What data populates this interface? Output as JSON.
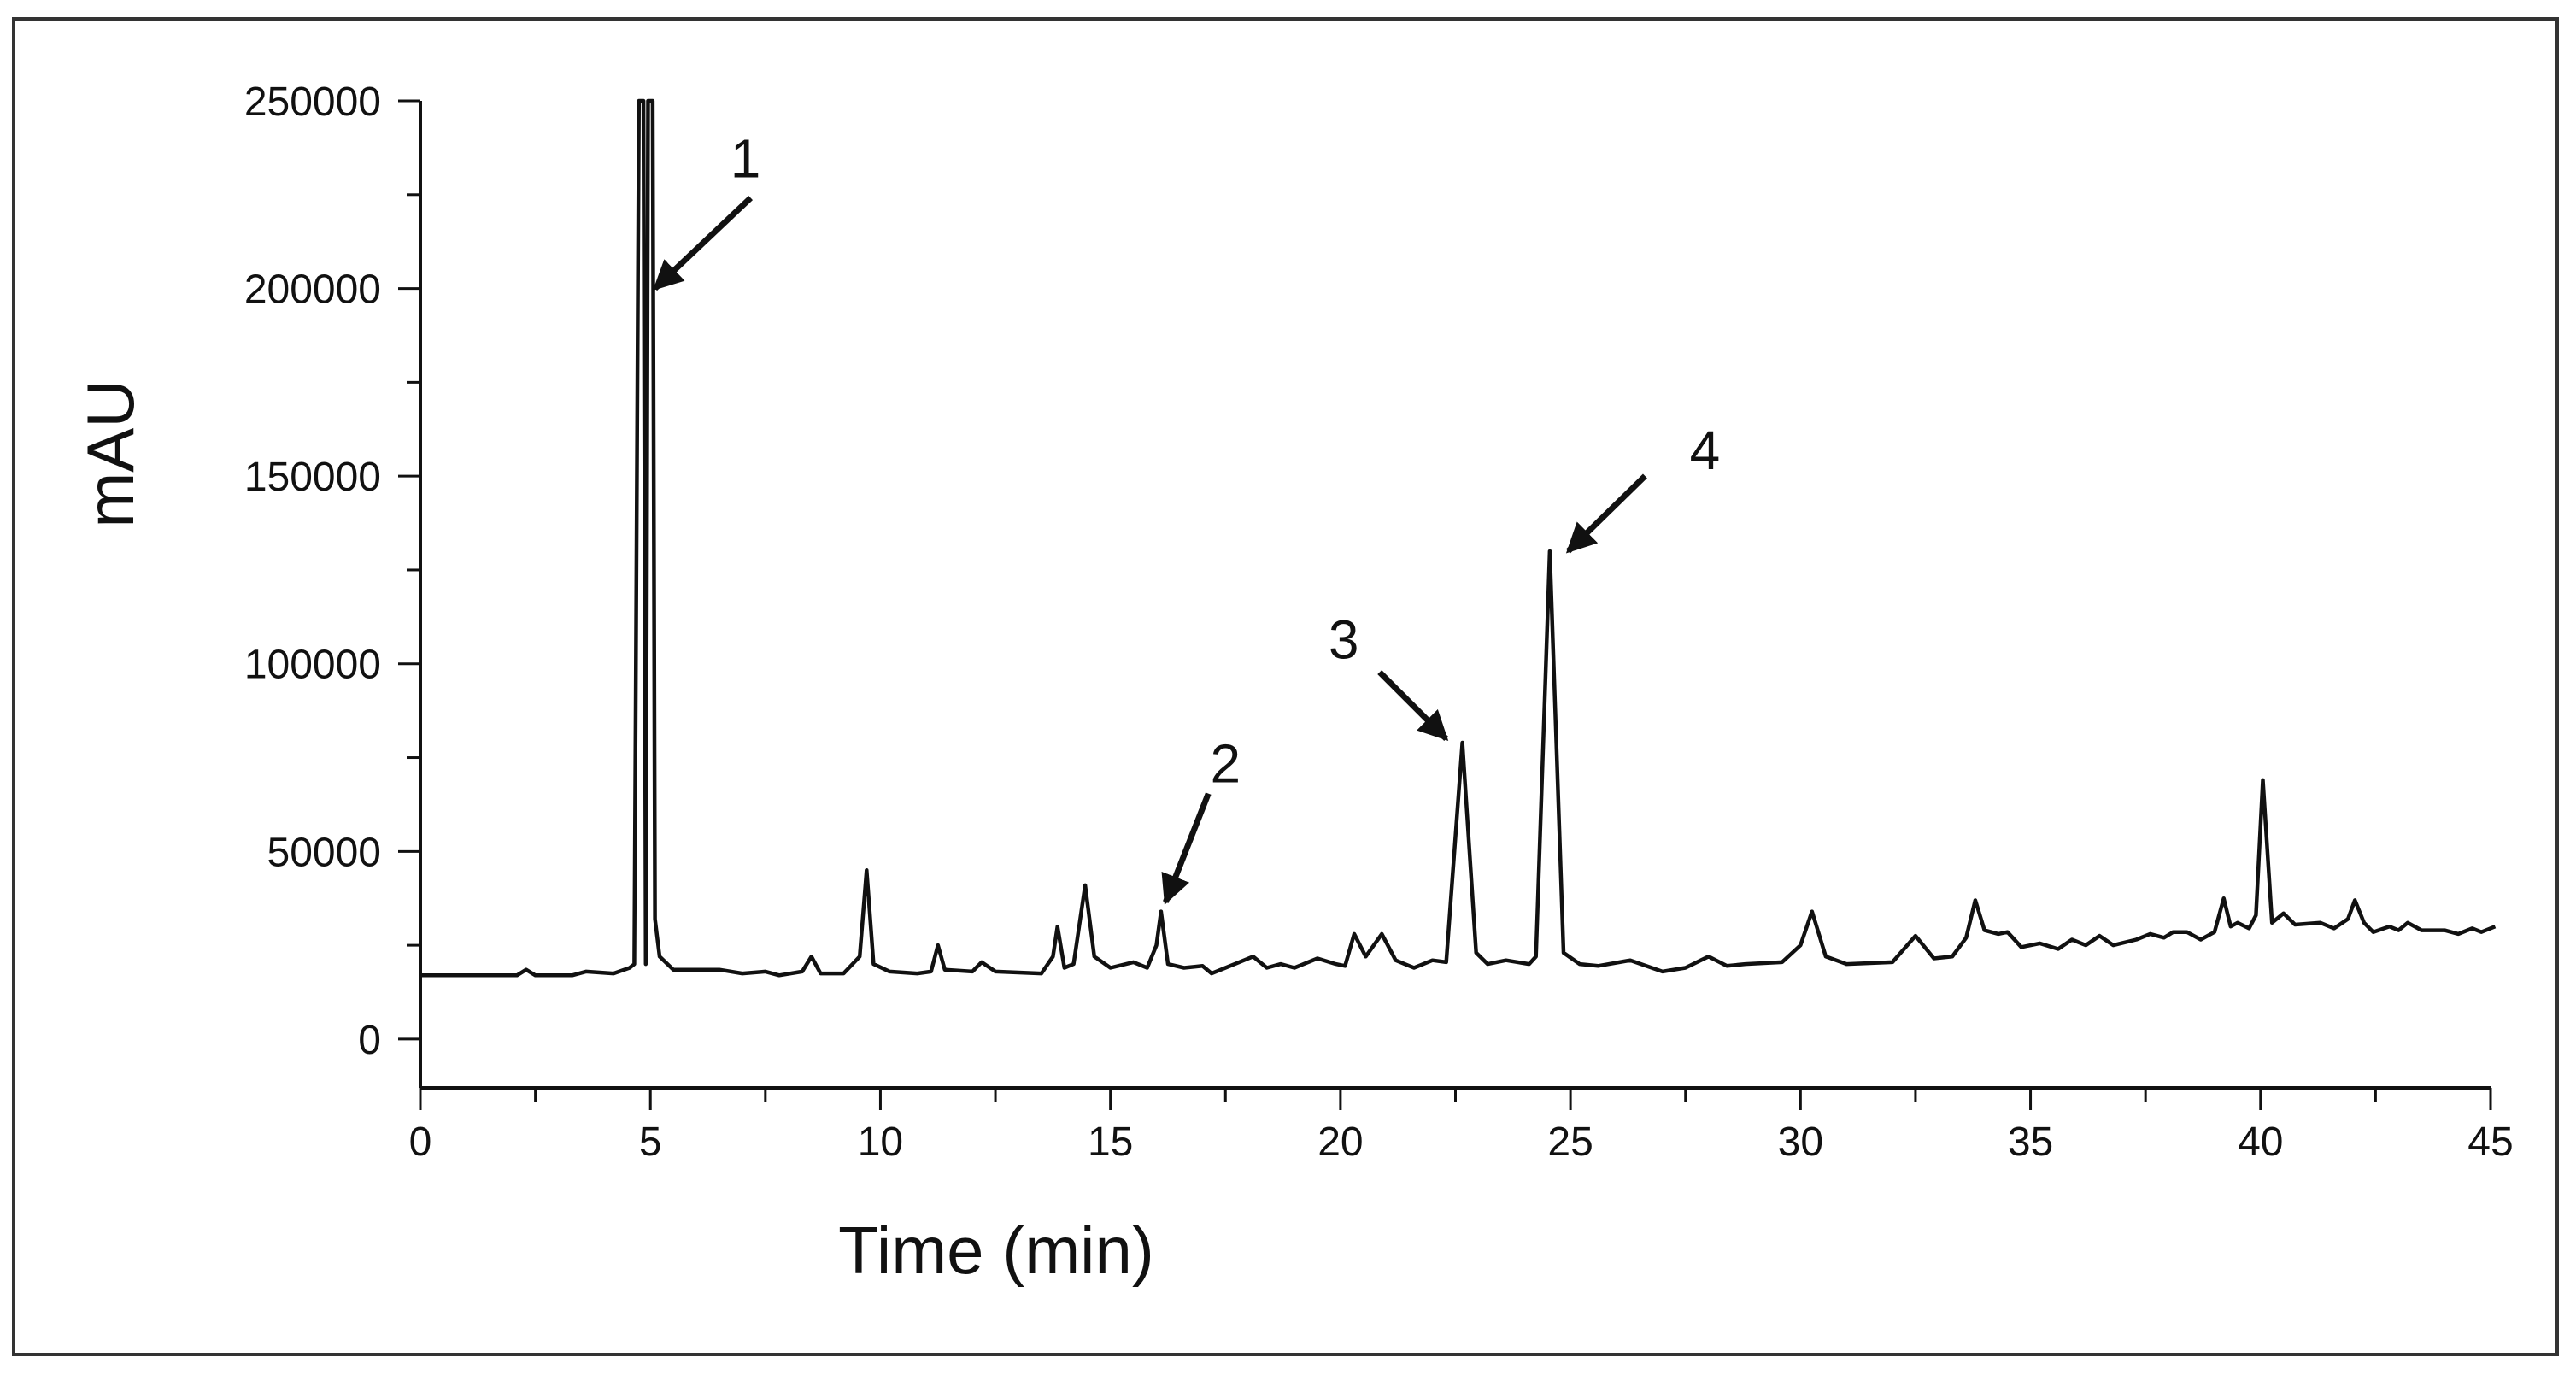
{
  "chart_data": {
    "type": "line",
    "xlabel": "Time (min)",
    "ylabel": "mAU",
    "xlim": [
      0,
      45
    ],
    "ylim": [
      -13000,
      250000
    ],
    "xticks": [
      0,
      5,
      10,
      15,
      20,
      25,
      30,
      35,
      40,
      45
    ],
    "yticks": [
      0,
      50000,
      100000,
      150000,
      200000,
      250000
    ],
    "grid": false,
    "legend": "none",
    "line_color": "#111111",
    "series": [
      {
        "values": [
          [
            0,
            17000
          ],
          [
            2.1,
            17000
          ],
          [
            2.3,
            18500
          ],
          [
            2.5,
            17000
          ],
          [
            3.3,
            17000
          ],
          [
            3.6,
            18000
          ],
          [
            4.2,
            17500
          ],
          [
            4.55,
            19000
          ],
          [
            4.65,
            20000
          ],
          [
            4.75,
            250000
          ],
          [
            4.85,
            250000
          ],
          [
            4.9,
            20000
          ],
          [
            4.95,
            250000
          ],
          [
            5.05,
            250000
          ],
          [
            5.1,
            32000
          ],
          [
            5.2,
            22000
          ],
          [
            5.5,
            18500
          ],
          [
            6.5,
            18500
          ],
          [
            7.0,
            17500
          ],
          [
            7.5,
            18000
          ],
          [
            7.8,
            17000
          ],
          [
            8.3,
            18000
          ],
          [
            8.5,
            22000
          ],
          [
            8.7,
            17500
          ],
          [
            9.2,
            17500
          ],
          [
            9.55,
            22000
          ],
          [
            9.7,
            45000
          ],
          [
            9.85,
            20000
          ],
          [
            10.2,
            18000
          ],
          [
            10.8,
            17500
          ],
          [
            11.1,
            18000
          ],
          [
            11.25,
            25000
          ],
          [
            11.4,
            18500
          ],
          [
            12.0,
            18000
          ],
          [
            12.2,
            20500
          ],
          [
            12.5,
            18000
          ],
          [
            13.5,
            17500
          ],
          [
            13.75,
            22000
          ],
          [
            13.85,
            30000
          ],
          [
            14.0,
            19000
          ],
          [
            14.2,
            20000
          ],
          [
            14.45,
            41000
          ],
          [
            14.65,
            22000
          ],
          [
            15.0,
            19000
          ],
          [
            15.5,
            20500
          ],
          [
            15.8,
            19000
          ],
          [
            16.0,
            25000
          ],
          [
            16.1,
            34000
          ],
          [
            16.25,
            20000
          ],
          [
            16.6,
            19000
          ],
          [
            17.0,
            19500
          ],
          [
            17.2,
            17500
          ],
          [
            17.5,
            19000
          ],
          [
            17.8,
            20500
          ],
          [
            18.1,
            22000
          ],
          [
            18.4,
            19000
          ],
          [
            18.7,
            20000
          ],
          [
            19.0,
            19000
          ],
          [
            19.5,
            21500
          ],
          [
            19.9,
            20000
          ],
          [
            20.1,
            19500
          ],
          [
            20.3,
            28000
          ],
          [
            20.55,
            22000
          ],
          [
            20.9,
            28000
          ],
          [
            21.2,
            21000
          ],
          [
            21.6,
            19000
          ],
          [
            22.0,
            21000
          ],
          [
            22.3,
            20500
          ],
          [
            22.65,
            79000
          ],
          [
            22.95,
            23000
          ],
          [
            23.2,
            20000
          ],
          [
            23.6,
            21000
          ],
          [
            24.1,
            20000
          ],
          [
            24.25,
            22000
          ],
          [
            24.55,
            130000
          ],
          [
            24.85,
            23000
          ],
          [
            25.2,
            20000
          ],
          [
            25.6,
            19500
          ],
          [
            26.3,
            21000
          ],
          [
            27.0,
            18000
          ],
          [
            27.5,
            19000
          ],
          [
            28.0,
            22000
          ],
          [
            28.4,
            19500
          ],
          [
            28.8,
            20000
          ],
          [
            29.6,
            20500
          ],
          [
            30.0,
            25000
          ],
          [
            30.25,
            34000
          ],
          [
            30.55,
            22000
          ],
          [
            31.0,
            20000
          ],
          [
            32.0,
            20500
          ],
          [
            32.5,
            27500
          ],
          [
            32.9,
            21500
          ],
          [
            33.3,
            22000
          ],
          [
            33.6,
            27000
          ],
          [
            33.8,
            37000
          ],
          [
            34.0,
            29000
          ],
          [
            34.3,
            28000
          ],
          [
            34.5,
            28500
          ],
          [
            34.8,
            24500
          ],
          [
            35.2,
            25500
          ],
          [
            35.6,
            24000
          ],
          [
            35.9,
            26500
          ],
          [
            36.2,
            25000
          ],
          [
            36.5,
            27500
          ],
          [
            36.8,
            25000
          ],
          [
            37.3,
            26500
          ],
          [
            37.6,
            28000
          ],
          [
            37.9,
            27000
          ],
          [
            38.1,
            28500
          ],
          [
            38.4,
            28500
          ],
          [
            38.7,
            26500
          ],
          [
            39.0,
            28500
          ],
          [
            39.2,
            37500
          ],
          [
            39.35,
            30000
          ],
          [
            39.5,
            31000
          ],
          [
            39.75,
            29500
          ],
          [
            39.9,
            33000
          ],
          [
            40.05,
            69000
          ],
          [
            40.25,
            31000
          ],
          [
            40.5,
            33500
          ],
          [
            40.75,
            30500
          ],
          [
            41.3,
            31000
          ],
          [
            41.6,
            29500
          ],
          [
            41.9,
            32000
          ],
          [
            42.05,
            37000
          ],
          [
            42.25,
            31000
          ],
          [
            42.45,
            28500
          ],
          [
            42.8,
            30000
          ],
          [
            43.0,
            29000
          ],
          [
            43.2,
            31000
          ],
          [
            43.5,
            29000
          ],
          [
            44.0,
            29000
          ],
          [
            44.3,
            28000
          ],
          [
            44.6,
            29500
          ],
          [
            44.8,
            28500
          ],
          [
            45.1,
            30000
          ]
        ]
      }
    ],
    "annotations": [
      {
        "label": "1",
        "x": 5.1,
        "y": 200000
      },
      {
        "label": "2",
        "x": 16.2,
        "y": 36500
      },
      {
        "label": "3",
        "x": 22.3,
        "y": 80000
      },
      {
        "label": "4",
        "x": 24.95,
        "y": 130000
      }
    ]
  }
}
